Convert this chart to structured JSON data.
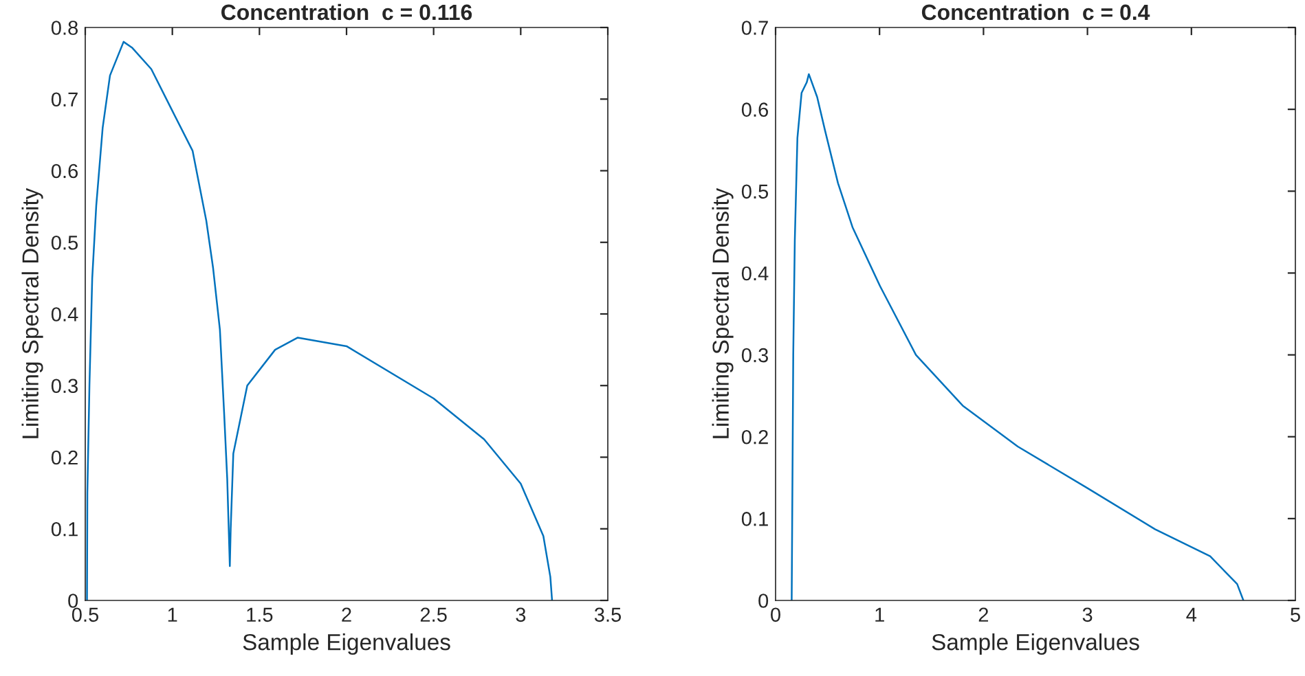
{
  "chart_data": [
    {
      "type": "line",
      "title": "Concentration  c = 0.116",
      "xlabel": "Sample Eigenvalues",
      "ylabel": "Limiting Spectral Density",
      "series": [
        {
          "color": "#0072bd",
          "x": [
            0.51,
            0.512,
            0.524,
            0.54,
            0.563,
            0.6,
            0.642,
            0.72,
            0.768,
            0.879,
            0.997,
            1.116,
            1.195,
            1.234,
            1.273,
            1.297,
            1.315,
            1.33,
            1.335,
            1.35,
            1.43,
            1.59,
            1.72,
            2.0,
            2.5,
            2.79,
            3.0,
            3.13,
            3.17,
            3.18
          ],
          "values": [
            0,
            0.15,
            0.3,
            0.45,
            0.551,
            0.66,
            0.733,
            0.78,
            0.772,
            0.742,
            0.685,
            0.628,
            0.53,
            0.464,
            0.378,
            0.263,
            0.17,
            0.048,
            0.1,
            0.205,
            0.3,
            0.35,
            0.367,
            0.355,
            0.282,
            0.225,
            0.163,
            0.09,
            0.033,
            0
          ]
        }
      ],
      "xlim": [
        0.5,
        3.5
      ],
      "xticks": [
        0.5,
        1,
        1.5,
        2,
        2.5,
        3,
        3.5
      ],
      "ylim": [
        0,
        0.8
      ],
      "yticks": [
        0,
        0.1,
        0.2,
        0.3,
        0.4,
        0.5,
        0.6,
        0.7,
        0.8
      ],
      "grid": false
    },
    {
      "type": "line",
      "title": "Concentration  c = 0.4",
      "xlabel": "Sample Eigenvalues",
      "ylabel": "Limiting Spectral Density",
      "series": [
        {
          "color": "#0072bd",
          "x": [
            0.155,
            0.17,
            0.185,
            0.21,
            0.25,
            0.3,
            0.32,
            0.4,
            0.476,
            0.6,
            0.74,
            1.005,
            1.35,
            1.8,
            2.33,
            2.99,
            3.65,
            4.18,
            4.44,
            4.5
          ],
          "values": [
            0,
            0.3,
            0.44,
            0.565,
            0.62,
            0.633,
            0.643,
            0.615,
            0.574,
            0.51,
            0.456,
            0.384,
            0.3,
            0.238,
            0.188,
            0.138,
            0.087,
            0.054,
            0.02,
            0
          ]
        }
      ],
      "xlim": [
        0,
        5
      ],
      "xticks": [
        0,
        1,
        2,
        3,
        4,
        5
      ],
      "ylim": [
        0,
        0.7
      ],
      "yticks": [
        0,
        0.1,
        0.2,
        0.3,
        0.4,
        0.5,
        0.6,
        0.7
      ],
      "grid": false
    }
  ]
}
